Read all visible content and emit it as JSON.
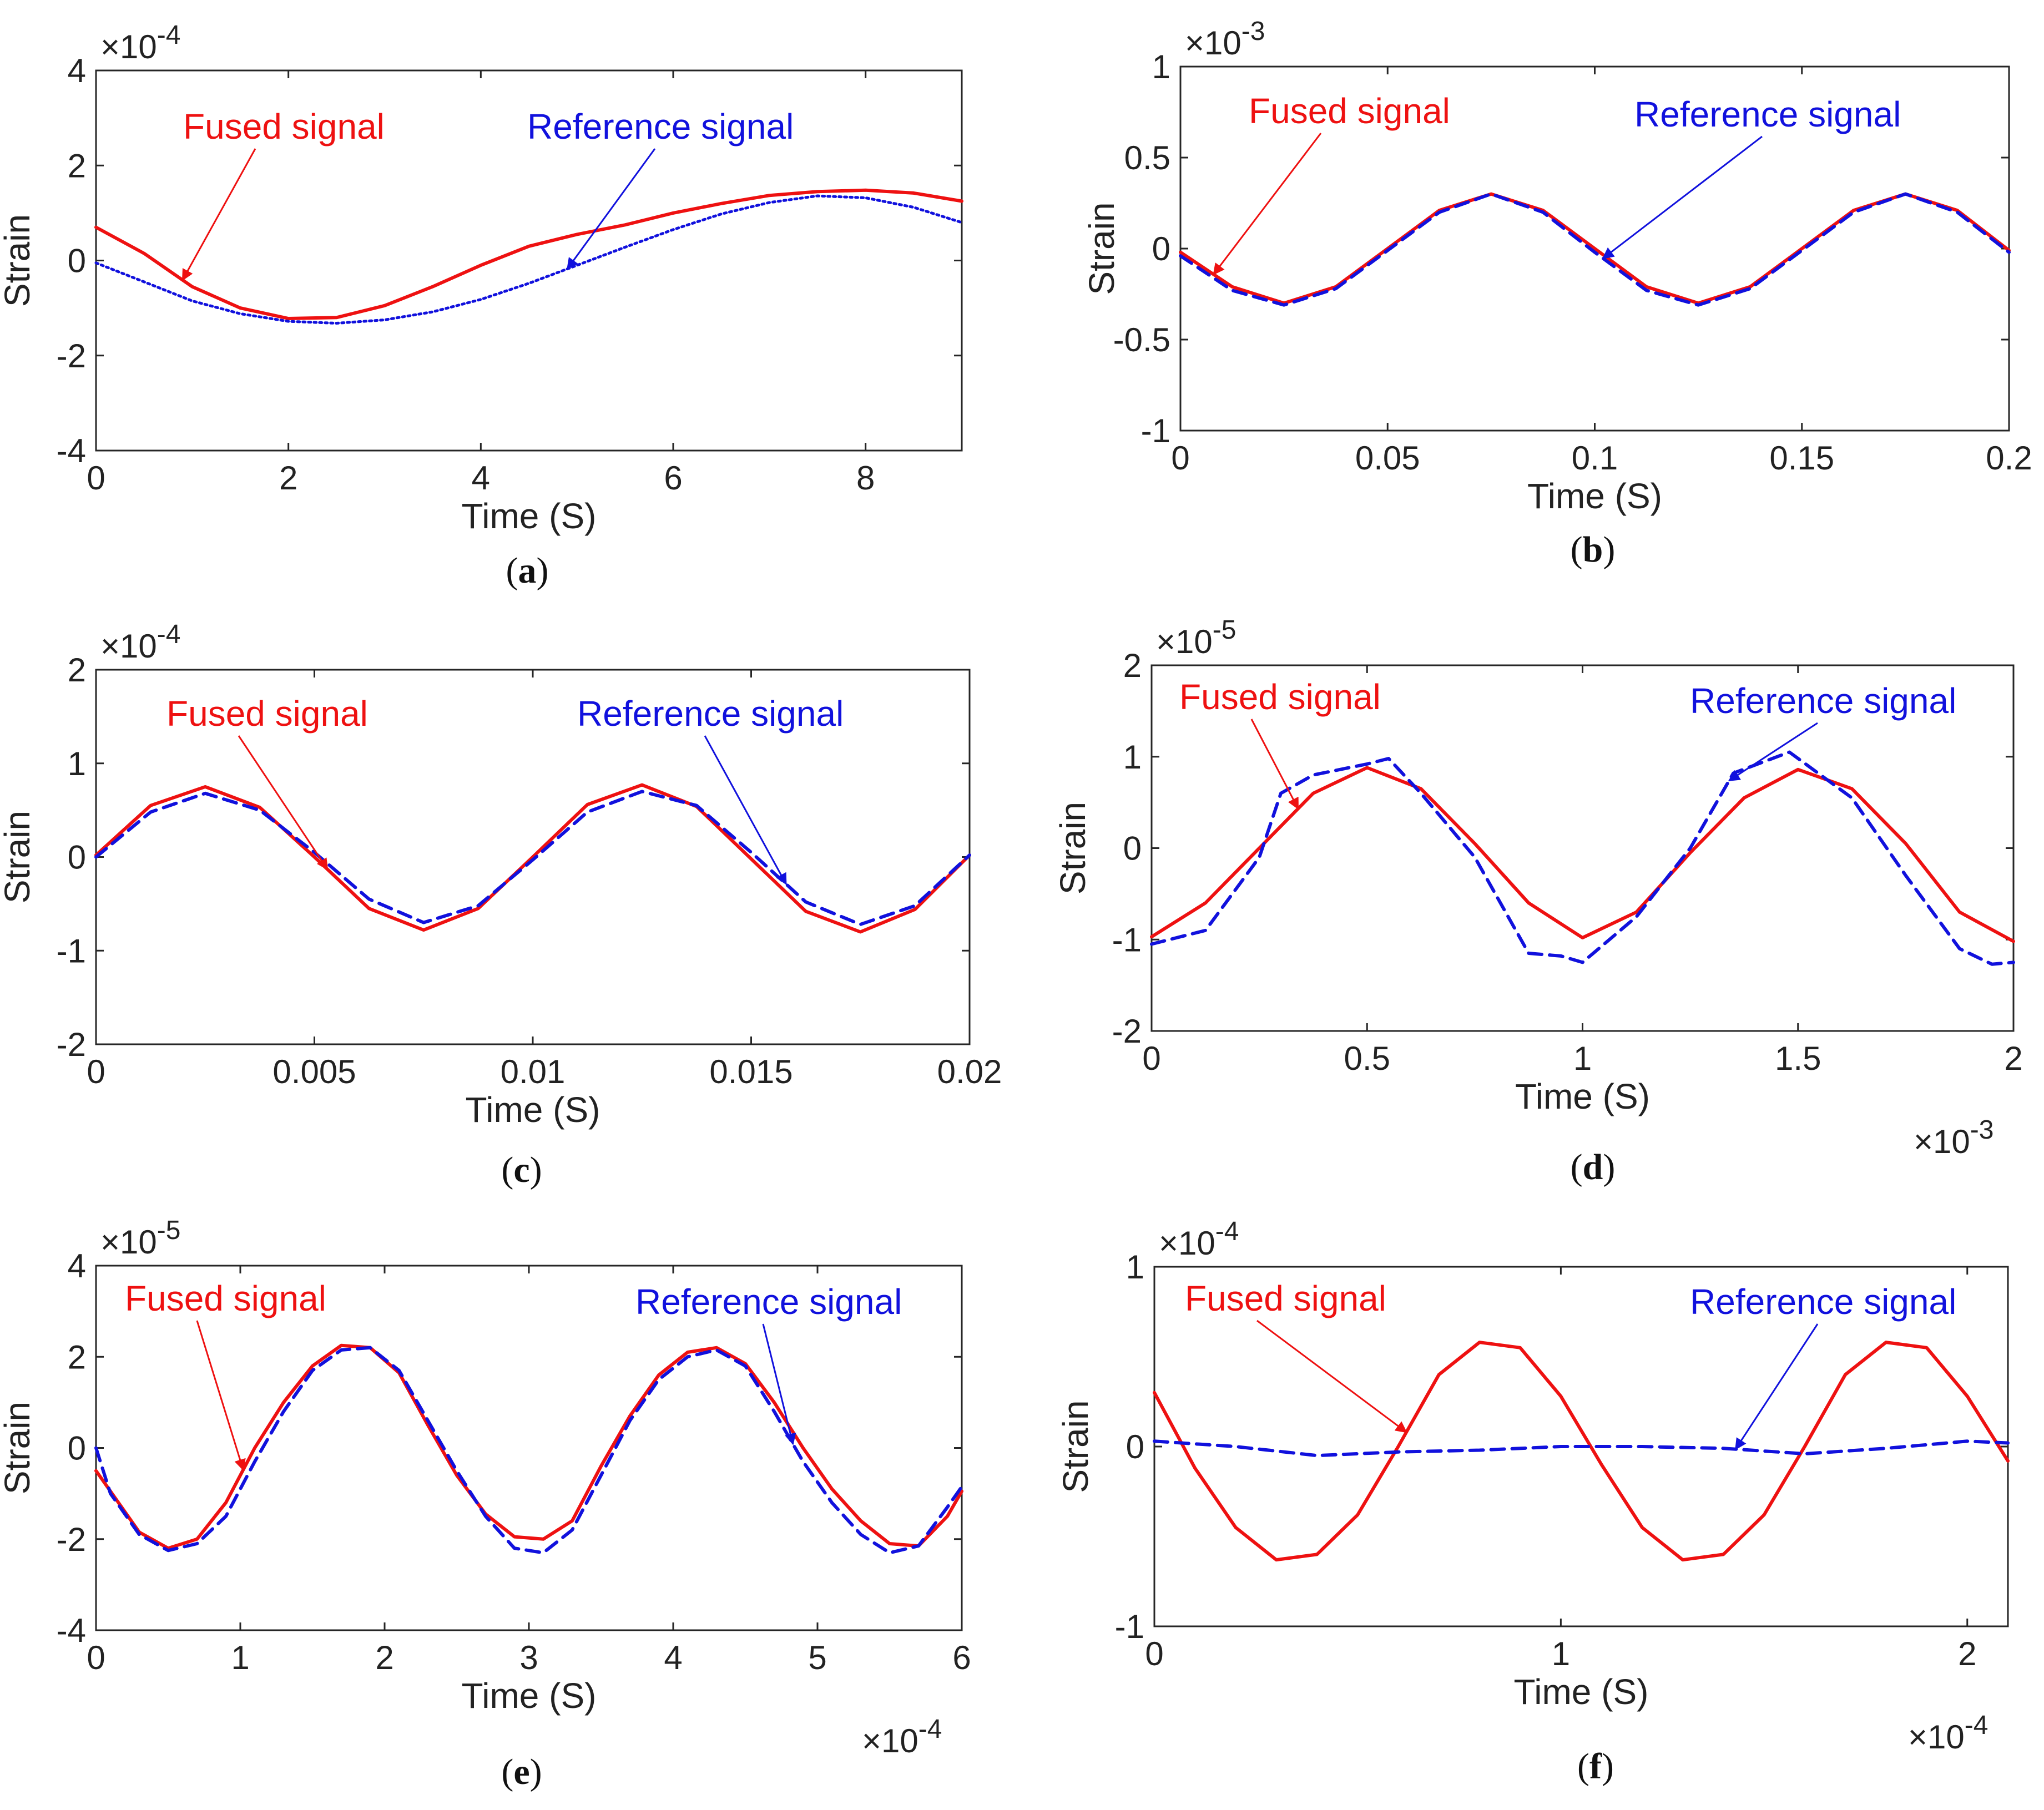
{
  "colors": {
    "fused": "#ee1111",
    "reference": "#1111dd",
    "axis": "#262626"
  },
  "chart_data": [
    {
      "type": "line",
      "panel": "a",
      "caption_open": "(",
      "caption_letter": "a",
      "caption_close": ")",
      "xlabel": "Time (S)",
      "ylabel": "Strain",
      "xlim": [
        0,
        9
      ],
      "ylim": [
        -4,
        4
      ],
      "xticks": [
        0,
        2,
        4,
        6,
        8
      ],
      "xtick_labels": [
        "0",
        "2",
        "4",
        "6",
        "8"
      ],
      "yticks": [
        -4,
        -2,
        0,
        2,
        4
      ],
      "ytick_labels": [
        "-4",
        "-2",
        "0",
        "2",
        "4"
      ],
      "y_multiplier": {
        "base": "×10",
        "exp": "-4"
      },
      "x_multiplier": null,
      "series": [
        {
          "name": "Fused signal",
          "style": "solid",
          "x": [
            0,
            0.5,
            1,
            1.5,
            2,
            2.5,
            3,
            3.5,
            4,
            4.5,
            5,
            5.5,
            6,
            6.5,
            7,
            7.5,
            8,
            8.5,
            9
          ],
          "y": [
            0.7,
            0.15,
            -0.55,
            -1.0,
            -1.22,
            -1.2,
            -0.95,
            -0.55,
            -0.1,
            0.3,
            0.55,
            0.75,
            1.0,
            1.2,
            1.37,
            1.45,
            1.48,
            1.42,
            1.25
          ]
        },
        {
          "name": "Reference signal",
          "style": "dotted",
          "x": [
            0,
            0.5,
            1,
            1.5,
            2,
            2.5,
            3,
            3.5,
            4,
            4.5,
            5,
            5.5,
            6,
            6.5,
            7,
            7.5,
            8,
            8.5,
            9
          ],
          "y": [
            -0.05,
            -0.45,
            -0.85,
            -1.12,
            -1.28,
            -1.32,
            -1.25,
            -1.08,
            -0.82,
            -0.48,
            -0.1,
            0.28,
            0.65,
            0.98,
            1.22,
            1.36,
            1.32,
            1.12,
            0.8
          ]
        }
      ],
      "annotations": [
        {
          "text": "Fused signal",
          "color": "fused",
          "series": 0,
          "at_x": 0.9
        },
        {
          "text": "Reference signal",
          "color": "reference",
          "series": 1,
          "at_x": 4.9
        }
      ]
    },
    {
      "type": "line",
      "panel": "b",
      "caption_open": "(",
      "caption_letter": "b",
      "caption_close": ")",
      "xlabel": "Time (S)",
      "ylabel": "Strain",
      "xlim": [
        0,
        0.2
      ],
      "ylim": [
        -1,
        1
      ],
      "xticks": [
        0,
        0.05,
        0.1,
        0.15,
        0.2
      ],
      "xtick_labels": [
        "0",
        "0.05",
        "0.1",
        "0.15",
        "0.2"
      ],
      "yticks": [
        -1,
        -0.5,
        0,
        0.5,
        1
      ],
      "ytick_labels": [
        "-1",
        "-0.5",
        "0",
        "0.5",
        "1"
      ],
      "y_multiplier": {
        "base": "×10",
        "exp": "-3"
      },
      "x_multiplier": null,
      "series": [
        {
          "name": "Fused signal",
          "style": "solid",
          "x": [
            0,
            0.0125,
            0.025,
            0.0375,
            0.05,
            0.0625,
            0.075,
            0.0875,
            0.1,
            0.1125,
            0.125,
            0.1375,
            0.15,
            0.1625,
            0.175,
            0.1875,
            0.2
          ],
          "y": [
            -0.02,
            -0.21,
            -0.3,
            -0.21,
            0.0,
            0.21,
            0.3,
            0.21,
            0.0,
            -0.21,
            -0.3,
            -0.21,
            0.0,
            0.21,
            0.3,
            0.21,
            -0.01
          ]
        },
        {
          "name": "Reference signal",
          "style": "dashed",
          "x": [
            0,
            0.0125,
            0.025,
            0.0375,
            0.05,
            0.0625,
            0.075,
            0.0875,
            0.1,
            0.1125,
            0.125,
            0.1375,
            0.15,
            0.1625,
            0.175,
            0.1875,
            0.2
          ],
          "y": [
            -0.04,
            -0.23,
            -0.31,
            -0.22,
            -0.01,
            0.2,
            0.3,
            0.2,
            -0.02,
            -0.23,
            -0.31,
            -0.22,
            -0.01,
            0.2,
            0.3,
            0.2,
            -0.02
          ]
        }
      ],
      "annotations": [
        {
          "text": "Fused signal",
          "color": "fused",
          "series": 0,
          "at_x": 0.008
        },
        {
          "text": "Reference signal",
          "color": "reference",
          "series": 1,
          "at_x": 0.102
        }
      ]
    },
    {
      "type": "line",
      "panel": "c",
      "caption_open": "(",
      "caption_letter": "c",
      "caption_close": ")",
      "xlabel": "Time (S)",
      "ylabel": "Strain",
      "xlim": [
        0,
        0.02
      ],
      "ylim": [
        -2,
        2
      ],
      "xticks": [
        0,
        0.005,
        0.01,
        0.015,
        0.02
      ],
      "xtick_labels": [
        "0",
        "0.005",
        "0.01",
        "0.015",
        "0.02"
      ],
      "yticks": [
        -2,
        -1,
        0,
        1,
        2
      ],
      "ytick_labels": [
        "-2",
        "-1",
        "0",
        "1",
        "2"
      ],
      "y_multiplier": {
        "base": "×10",
        "exp": "-4"
      },
      "x_multiplier": null,
      "series": [
        {
          "name": "Fused signal",
          "style": "solid",
          "x": [
            0,
            0.00125,
            0.0025,
            0.00375,
            0.005,
            0.00625,
            0.0075,
            0.00875,
            0.01,
            0.01125,
            0.0125,
            0.01375,
            0.015,
            0.01625,
            0.0175,
            0.01875,
            0.02
          ],
          "y": [
            0.02,
            0.55,
            0.75,
            0.53,
            0.0,
            -0.55,
            -0.78,
            -0.55,
            0.0,
            0.56,
            0.77,
            0.54,
            -0.02,
            -0.58,
            -0.8,
            -0.56,
            0.02
          ]
        },
        {
          "name": "Reference signal",
          "style": "dashed",
          "x": [
            0,
            0.00125,
            0.0025,
            0.00375,
            0.005,
            0.00625,
            0.0075,
            0.00875,
            0.01,
            0.01125,
            0.0125,
            0.01375,
            0.015,
            0.01625,
            0.0175,
            0.01875,
            0.02
          ],
          "y": [
            0.0,
            0.48,
            0.68,
            0.5,
            0.05,
            -0.45,
            -0.7,
            -0.52,
            -0.03,
            0.48,
            0.7,
            0.55,
            0.05,
            -0.48,
            -0.72,
            -0.52,
            0.02
          ]
        }
      ],
      "annotations": [
        {
          "text": "Fused signal",
          "color": "fused",
          "series": 0,
          "at_x": 0.0053
        },
        {
          "text": "Reference signal",
          "color": "reference",
          "series": 1,
          "at_x": 0.0158
        }
      ]
    },
    {
      "type": "line",
      "panel": "d",
      "caption_open": "(",
      "caption_letter": "d",
      "caption_close": ")",
      "xlabel": "Time (S)",
      "ylabel": "Strain",
      "xlim": [
        0,
        2
      ],
      "ylim": [
        -2,
        2
      ],
      "xticks": [
        0,
        0.5,
        1,
        1.5,
        2
      ],
      "xtick_labels": [
        "0",
        "0.5",
        "1",
        "1.5",
        "2"
      ],
      "yticks": [
        -2,
        -1,
        0,
        1,
        2
      ],
      "ytick_labels": [
        "-2",
        "-1",
        "0",
        "1",
        "2"
      ],
      "y_multiplier": {
        "base": "×10",
        "exp": "-5"
      },
      "x_multiplier": {
        "base": "×10",
        "exp": "-3"
      },
      "series": [
        {
          "name": "Fused signal",
          "style": "solid",
          "x": [
            0,
            0.125,
            0.25,
            0.375,
            0.5,
            0.625,
            0.75,
            0.875,
            1.0,
            1.125,
            1.25,
            1.375,
            1.5,
            1.625,
            1.75,
            1.875,
            2.0
          ],
          "y": [
            -0.97,
            -0.6,
            0.0,
            0.6,
            0.88,
            0.65,
            0.05,
            -0.6,
            -0.98,
            -0.7,
            -0.05,
            0.55,
            0.86,
            0.65,
            0.05,
            -0.7,
            -1.02
          ]
        },
        {
          "name": "Reference signal",
          "style": "dashed",
          "x": [
            0,
            0.125,
            0.25,
            0.3,
            0.375,
            0.5,
            0.55,
            0.625,
            0.75,
            0.875,
            0.95,
            1.0,
            1.125,
            1.25,
            1.35,
            1.48,
            1.625,
            1.75,
            1.875,
            1.95,
            2.0
          ],
          "y": [
            -1.05,
            -0.9,
            -0.1,
            0.6,
            0.8,
            0.92,
            0.98,
            0.6,
            -0.1,
            -1.15,
            -1.18,
            -1.25,
            -0.75,
            0.0,
            0.82,
            1.05,
            0.55,
            -0.3,
            -1.1,
            -1.27,
            -1.25
          ]
        }
      ],
      "annotations": [
        {
          "text": "Fused signal",
          "color": "fused",
          "series": 0,
          "at_x": 0.34
        },
        {
          "text": "Reference signal",
          "color": "reference",
          "series": 1,
          "at_x": 1.34
        }
      ]
    },
    {
      "type": "line",
      "panel": "e",
      "caption_open": "(",
      "caption_letter": "e",
      "caption_close": ")",
      "xlabel": "Time (S)",
      "ylabel": "Strain",
      "xlim": [
        0,
        6
      ],
      "ylim": [
        -4,
        4
      ],
      "xticks": [
        0,
        1,
        2,
        3,
        4,
        5,
        6
      ],
      "xtick_labels": [
        "0",
        "1",
        "2",
        "3",
        "4",
        "5",
        "6"
      ],
      "yticks": [
        -4,
        -2,
        0,
        2,
        4
      ],
      "ytick_labels": [
        "-4",
        "-2",
        "0",
        "2",
        "4"
      ],
      "y_multiplier": {
        "base": "×10",
        "exp": "-5"
      },
      "x_multiplier": {
        "base": "×10",
        "exp": "-4"
      },
      "series": [
        {
          "name": "Fused signal",
          "style": "solid",
          "x": [
            0,
            0.3,
            0.5,
            0.7,
            0.9,
            1.1,
            1.3,
            1.5,
            1.7,
            1.9,
            2.1,
            2.3,
            2.5,
            2.7,
            2.9,
            3.1,
            3.3,
            3.5,
            3.7,
            3.9,
            4.1,
            4.3,
            4.5,
            4.7,
            4.9,
            5.1,
            5.3,
            5.5,
            5.7,
            5.9,
            6.0
          ],
          "y": [
            -0.5,
            -1.85,
            -2.2,
            -2.0,
            -1.2,
            0.0,
            1.0,
            1.8,
            2.25,
            2.2,
            1.65,
            0.5,
            -0.6,
            -1.45,
            -1.95,
            -2.0,
            -1.6,
            -0.4,
            0.7,
            1.6,
            2.1,
            2.2,
            1.85,
            1.0,
            0.0,
            -0.9,
            -1.6,
            -2.1,
            -2.15,
            -1.5,
            -0.95
          ]
        },
        {
          "name": "Reference signal",
          "style": "dashed",
          "x": [
            0,
            0.1,
            0.3,
            0.5,
            0.7,
            0.9,
            1.1,
            1.3,
            1.5,
            1.7,
            1.9,
            2.1,
            2.3,
            2.5,
            2.7,
            2.9,
            3.1,
            3.3,
            3.5,
            3.7,
            3.9,
            4.1,
            4.3,
            4.5,
            4.7,
            4.9,
            5.1,
            5.3,
            5.5,
            5.7,
            5.9,
            6.0
          ],
          "y": [
            0.0,
            -1.0,
            -1.9,
            -2.25,
            -2.1,
            -1.5,
            -0.3,
            0.8,
            1.7,
            2.15,
            2.2,
            1.7,
            0.6,
            -0.5,
            -1.5,
            -2.2,
            -2.3,
            -1.8,
            -0.6,
            0.6,
            1.5,
            2.0,
            2.15,
            1.8,
            0.8,
            -0.3,
            -1.2,
            -1.9,
            -2.3,
            -2.15,
            -1.3,
            -0.85
          ]
        }
      ],
      "annotations": [
        {
          "text": "Fused signal",
          "color": "fused",
          "series": 0,
          "at_x": 1.02
        },
        {
          "text": "Reference signal",
          "color": "reference",
          "series": 1,
          "at_x": 4.83
        }
      ]
    },
    {
      "type": "line",
      "panel": "f",
      "caption_open": "(",
      "caption_letter": "f",
      "caption_close": ")",
      "xlabel": "Time (S)",
      "ylabel": "Strain",
      "xlim": [
        0,
        2.1
      ],
      "ylim": [
        -1,
        1
      ],
      "xticks": [
        0,
        1,
        2
      ],
      "xtick_labels": [
        "0",
        "1",
        "2"
      ],
      "yticks": [
        -1,
        0,
        1
      ],
      "ytick_labels": [
        "-1",
        "0",
        "1"
      ],
      "y_multiplier": {
        "base": "×10",
        "exp": "-4"
      },
      "x_multiplier": {
        "base": "×10",
        "exp": "-4"
      },
      "series": [
        {
          "name": "Fused signal",
          "style": "solid",
          "x": [
            0,
            0.1,
            0.2,
            0.3,
            0.4,
            0.5,
            0.6,
            0.7,
            0.8,
            0.9,
            1.0,
            1.1,
            1.2,
            1.3,
            1.4,
            1.5,
            1.6,
            1.7,
            1.8,
            1.9,
            2.0,
            2.1
          ],
          "y": [
            0.3,
            -0.12,
            -0.45,
            -0.63,
            -0.6,
            -0.38,
            0.0,
            0.4,
            0.58,
            0.55,
            0.28,
            -0.1,
            -0.45,
            -0.63,
            -0.6,
            -0.38,
            0.0,
            0.4,
            0.58,
            0.55,
            0.28,
            -0.08
          ]
        },
        {
          "name": "Reference signal",
          "style": "dashed",
          "x": [
            0,
            0.2,
            0.4,
            0.6,
            0.8,
            1.0,
            1.2,
            1.4,
            1.6,
            1.8,
            2.0,
            2.1
          ],
          "y": [
            0.03,
            0.0,
            -0.05,
            -0.03,
            -0.02,
            0.0,
            0.0,
            -0.01,
            -0.04,
            -0.01,
            0.03,
            0.02
          ]
        }
      ],
      "annotations": [
        {
          "text": "Fused signal",
          "color": "fused",
          "series": 0,
          "at_x": 0.62
        },
        {
          "text": "Reference signal",
          "color": "reference",
          "series": 1,
          "at_x": 1.43
        }
      ]
    }
  ]
}
